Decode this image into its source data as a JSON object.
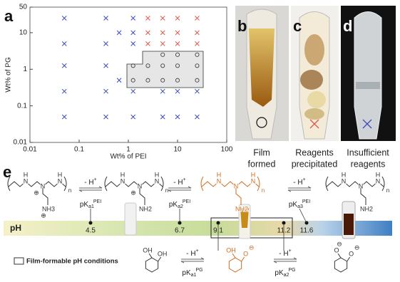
{
  "panels": {
    "a": "a",
    "b": "b",
    "c": "c",
    "d": "d",
    "e": "e"
  },
  "chart_data": {
    "type": "scatter",
    "xlabel": "Wt% of PEI",
    "ylabel": "Wt% of PG",
    "log_x": true,
    "log_y": true,
    "xlim": [
      0.01,
      100
    ],
    "ylim": [
      0.01,
      50
    ],
    "xticks": [
      0.01,
      0.1,
      1,
      10,
      100
    ],
    "yticks": [
      0.01,
      0.1,
      1,
      10,
      50
    ],
    "series": [
      {
        "marker": "x",
        "color": "#3b4cc0",
        "x": [
          0.05,
          0.35,
          1.25,
          0.65,
          1.25,
          0.05,
          0.35,
          1.25,
          0.05,
          0.35,
          0.65,
          0.05,
          0.35,
          1.25,
          5,
          10,
          25,
          0.05,
          0.35,
          1.25,
          5,
          10,
          25
        ],
        "values": [
          25,
          25,
          25,
          10,
          10,
          5,
          5,
          5,
          1.25,
          1.25,
          0.5,
          0.25,
          0.25,
          0.25,
          0.25,
          0.25,
          0.25,
          0.05,
          0.05,
          0.05,
          0.05,
          0.05,
          0.05
        ]
      },
      {
        "marker": "x",
        "color": "#e0584a",
        "x": [
          2.5,
          5,
          10,
          25,
          2.5,
          5,
          10,
          25,
          2.5,
          5,
          10,
          25
        ],
        "values": [
          25,
          25,
          25,
          25,
          10,
          10,
          10,
          10,
          5,
          5,
          5,
          5
        ]
      },
      {
        "marker": "o",
        "color": "#444444",
        "x": [
          5,
          10,
          25,
          1.25,
          2.5,
          5,
          10,
          25,
          1.25,
          2.5,
          5,
          10,
          25
        ],
        "values": [
          2.5,
          2.5,
          2.5,
          1.25,
          1.25,
          1.25,
          1.25,
          1.25,
          0.5,
          0.5,
          0.5,
          0.5,
          0.5
        ]
      }
    ]
  },
  "photos": [
    {
      "caption": [
        "Film",
        "formed"
      ]
    },
    {
      "caption": [
        "Reagents",
        "precipitated"
      ]
    },
    {
      "caption": [
        "Insufficient",
        "reagents"
      ]
    }
  ],
  "panel_e": {
    "ph_label": "pH",
    "ph_values": [
      4.5,
      6.7,
      9.1,
      11.2,
      11.6
    ],
    "legend": "Film-formable pH conditions",
    "steps": [
      {
        "minus": "- H",
        "plus": "+",
        "p": "pK",
        "sub": "a1",
        "sup": "PEI"
      },
      {
        "minus": "- H",
        "plus": "+",
        "p": "pK",
        "sub": "a2",
        "sup": "PEI"
      },
      {
        "minus": "- H",
        "plus": "+",
        "p": "pK",
        "sub": "a3",
        "sup": "PEI"
      },
      {
        "minus": "- H",
        "plus": "+",
        "p": "pK",
        "sub": "a1",
        "sup": "PG"
      },
      {
        "minus": "- H",
        "plus": "+",
        "p": "pK",
        "sub": "a2",
        "sup": "PG"
      }
    ],
    "pei": [
      {
        "color": "#333333",
        "labels": [
          "H",
          "N",
          "H",
          "N",
          "N",
          "NH3",
          "n"
        ],
        "charges": [
          "⊕",
          "⊕"
        ]
      },
      {
        "color": "#333333",
        "labels": [
          "H",
          "N",
          "H",
          "N",
          "N",
          "NH2",
          "n"
        ],
        "charges": [
          "⊕"
        ]
      },
      {
        "color": "#d2691e",
        "labels": [
          "H",
          "N",
          "H",
          "N",
          "N",
          "NH2",
          "n"
        ],
        "charges": []
      },
      {
        "color": "#333333",
        "labels": [
          "H",
          "N",
          "H",
          "N",
          "N",
          "NH2",
          "n"
        ],
        "charges": []
      }
    ],
    "pg": [
      {
        "color": "#333333",
        "labels": [
          "OH",
          "OH"
        ],
        "charges": []
      },
      {
        "color": "#d2691e",
        "labels": [
          "OH",
          "O"
        ],
        "charges": [
          "⊖"
        ]
      },
      {
        "color": "#333333",
        "labels": [
          "O",
          "O"
        ],
        "charges": [
          "⊖",
          "⊖"
        ]
      }
    ]
  }
}
